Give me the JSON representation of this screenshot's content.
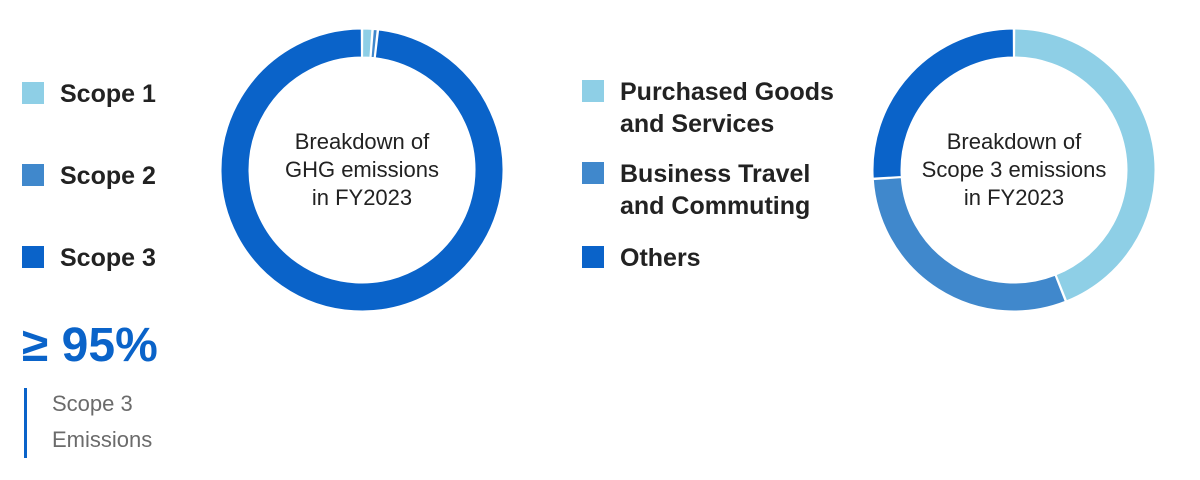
{
  "colors": {
    "light": "#8ecfe6",
    "mid": "#4088cc",
    "dark": "#0a63c9",
    "text": "#222222",
    "muted": "#6b6b6b"
  },
  "chart_data": [
    {
      "type": "pie",
      "variant": "donut",
      "categories": [
        "Scope 1",
        "Scope 2",
        "Scope 3"
      ],
      "values": [
        1.2,
        0.6,
        98.2
      ],
      "colors": [
        "#8ecfe6",
        "#4088cc",
        "#0a63c9"
      ],
      "center_text": [
        "Breakdown of",
        "GHG emissions",
        "in FY2023"
      ],
      "legend_position": "left"
    },
    {
      "type": "pie",
      "variant": "donut",
      "categories": [
        "Purchased Goods and Services",
        "Business Travel and Commuting",
        "Others"
      ],
      "values": [
        44,
        30,
        26
      ],
      "colors": [
        "#8ecfe6",
        "#4088cc",
        "#0a63c9"
      ],
      "center_text": [
        "Breakdown of",
        "Scope 3 emissions",
        "in FY2023"
      ],
      "legend_position": "left"
    }
  ],
  "highlight": {
    "value": "≥ 95%",
    "label": "Scope 3 Emissions"
  }
}
